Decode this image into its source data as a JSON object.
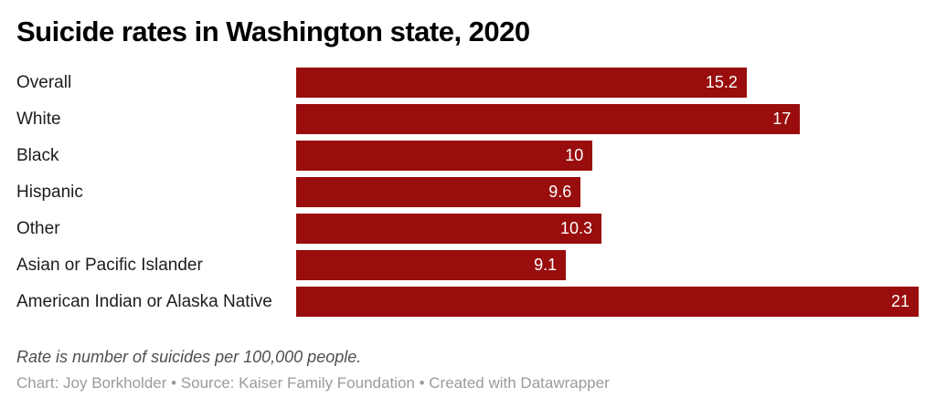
{
  "title": "Suicide rates in Washington state, 2020",
  "note": "Rate is number of suicides per 100,000 people.",
  "credits": "Chart: Joy Borkholder • Source: Kaiser Family Foundation • Created with Datawrapper",
  "colors": {
    "background": "#ffffff",
    "bar": "#990d0d",
    "value_label": "#ffffff",
    "title": "#000000",
    "category_label": "#1d1d1d",
    "note": "#4f4f4f",
    "credits": "#9b9b9b"
  },
  "chart_data": {
    "type": "bar",
    "orientation": "horizontal",
    "title": "Suicide rates in Washington state, 2020",
    "categories": [
      "Overall",
      "White",
      "Black",
      "Hispanic",
      "Other",
      "Asian or Pacific Islander",
      "American Indian or Alaska Native"
    ],
    "values": [
      15.2,
      17,
      10,
      9.6,
      10.3,
      9.1,
      21
    ],
    "value_labels": [
      "15.2",
      "17",
      "10",
      "9.6",
      "10.3",
      "9.1",
      "21"
    ],
    "xlabel": "",
    "ylabel": "",
    "xlim": [
      0,
      21
    ],
    "grid": false,
    "legend": false,
    "data_label_position": "inside-end",
    "note": "Rate is number of suicides per 100,000 people.",
    "source": "Kaiser Family Foundation",
    "chart_author": "Joy Borkholder",
    "tool": "Datawrapper"
  }
}
